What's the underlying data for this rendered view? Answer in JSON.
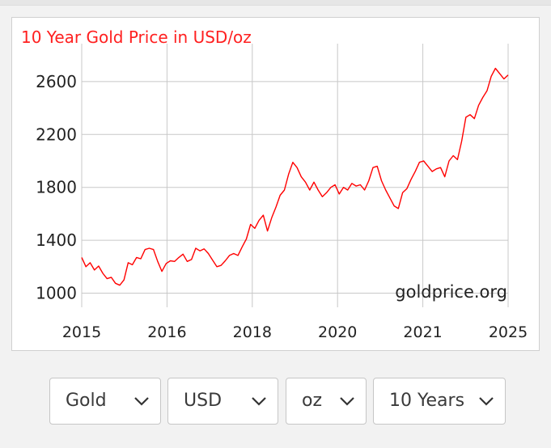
{
  "chart_data": {
    "type": "line",
    "title": "10 Year Gold Price in USD/oz",
    "watermark": "goldprice.org",
    "xlabel": "",
    "ylabel": "",
    "x_tick_labels": [
      "2015",
      "2016",
      "2018",
      "2020",
      "2021",
      "2025"
    ],
    "y_ticks": [
      1000,
      1400,
      1800,
      2200,
      2600
    ],
    "ylim": [
      930,
      2740
    ],
    "grid": true,
    "line_color": "#ff0000",
    "title_color": "#ff2020",
    "series": [
      {
        "values": [
          1270,
          1200,
          1230,
          1175,
          1205,
          1150,
          1110,
          1120,
          1075,
          1060,
          1100,
          1230,
          1215,
          1270,
          1260,
          1330,
          1340,
          1330,
          1240,
          1165,
          1225,
          1245,
          1240,
          1270,
          1295,
          1240,
          1255,
          1340,
          1320,
          1335,
          1300,
          1250,
          1200,
          1210,
          1245,
          1285,
          1300,
          1285,
          1350,
          1410,
          1520,
          1490,
          1550,
          1590,
          1470,
          1570,
          1650,
          1740,
          1780,
          1900,
          1990,
          1950,
          1880,
          1840,
          1780,
          1840,
          1780,
          1730,
          1760,
          1800,
          1820,
          1750,
          1800,
          1780,
          1830,
          1810,
          1820,
          1780,
          1850,
          1950,
          1960,
          1850,
          1780,
          1720,
          1660,
          1640,
          1760,
          1790,
          1860,
          1920,
          1990,
          2000,
          1960,
          1920,
          1940,
          1950,
          1880,
          2000,
          2040,
          2010,
          2150,
          2330,
          2350,
          2320,
          2420,
          2480,
          2530,
          2640,
          2700,
          2660,
          2620,
          2650
        ]
      }
    ]
  },
  "controls": {
    "metal": "Gold",
    "currency": "USD",
    "unit": "oz",
    "period": "10 Years"
  }
}
